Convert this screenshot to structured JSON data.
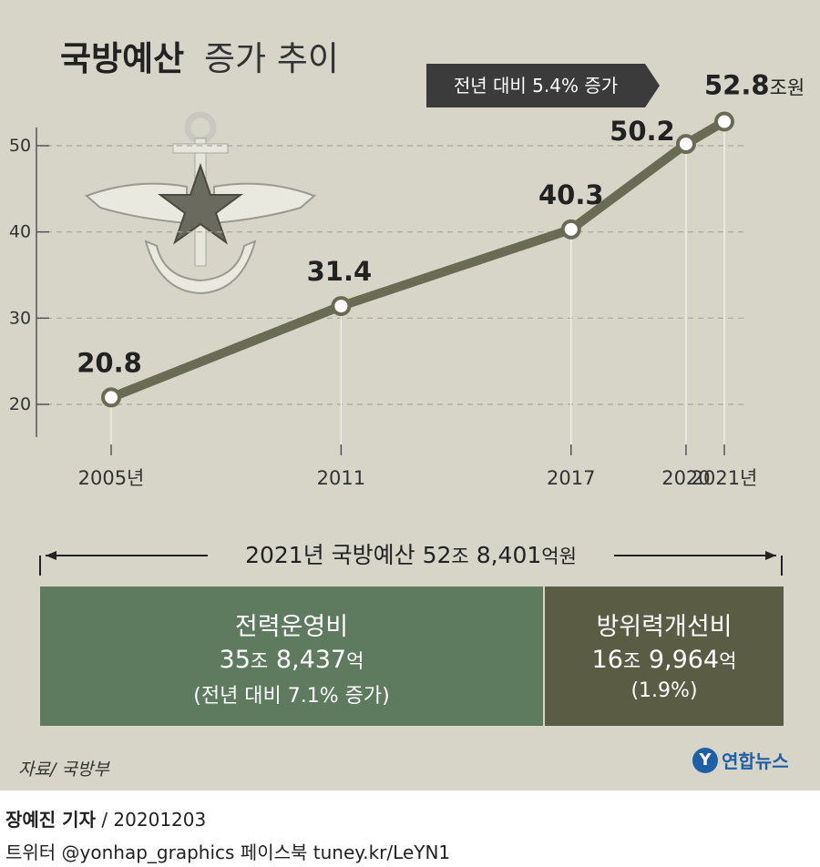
{
  "header": {
    "title_bold": "국방예산",
    "title_light": "증가 추이",
    "callout": "전년 대비 5.4% 증가"
  },
  "chart_data": {
    "type": "line",
    "title": "국방예산 증가 추이",
    "x": [
      "2005년",
      "2011",
      "2017",
      "2020",
      "2021년"
    ],
    "x_numeric": [
      2005,
      2011,
      2017,
      2020,
      2021
    ],
    "series": [
      {
        "values": [
          20.8,
          31.4,
          40.3,
          50.2,
          52.8
        ]
      }
    ],
    "value_labels": [
      "20.8",
      "31.4",
      "40.3",
      "50.2",
      "52.8"
    ],
    "last_unit": "조원",
    "y_ticks": [
      20,
      30,
      40,
      50
    ],
    "ylim": [
      16,
      57
    ],
    "xlabel": "",
    "ylabel": "",
    "grid": true
  },
  "summary": {
    "total_text": "2021년 국방예산 52",
    "total_unit1": "조",
    "total_text2": " 8,401",
    "total_unit2": "억원"
  },
  "breakdown": [
    {
      "name": "전력운영비",
      "amount1": "35",
      "unit1": "조",
      "amount2": " 8,437",
      "unit2": "억",
      "note": "(전년 대비 7.1% 증가)",
      "color": "#5e7b60"
    },
    {
      "name": "방위력개선비",
      "amount1": "16",
      "unit1": "조",
      "amount2": " 9,964",
      "unit2": "억",
      "note": "(1.9%)",
      "color": "#5a5c44"
    }
  ],
  "footer": {
    "source": "자료/ 국방부",
    "logo_mark": "Y",
    "logo_text": "연합뉴스",
    "reporter": "장예진 기자",
    "date": " / 20201203",
    "social": "트위터 @yonhap_graphics  페이스북 tuney.kr/LeYN1"
  }
}
